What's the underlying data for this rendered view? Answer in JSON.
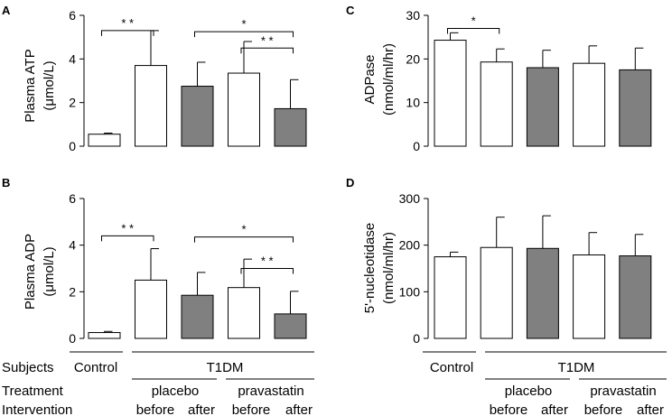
{
  "colors": {
    "placebo_after": "#808080",
    "pravastatin_after": "#808080",
    "open": "#ffffff",
    "ink": "#000000"
  },
  "chart_data": [
    {
      "panel": "A",
      "type": "bar",
      "ylabel": "Plasma ATP",
      "yunit": "(μmol/L)",
      "ylim": [
        0,
        6
      ],
      "yticks": [
        0,
        2,
        4,
        6
      ],
      "categories": [
        "Control",
        "T1DM placebo before",
        "T1DM placebo after",
        "T1DM pravastatin before",
        "T1DM pravastatin after"
      ],
      "values": [
        0.55,
        3.7,
        2.75,
        3.35,
        1.72
      ],
      "errors": [
        0.05,
        1.6,
        1.1,
        1.45,
        1.33
      ],
      "fills": [
        "open",
        "open",
        "filled",
        "open",
        "filled"
      ],
      "significance": [
        {
          "from": 0,
          "to": 1,
          "label": "* *",
          "y": 5.3
        },
        {
          "from": 2,
          "to": 4,
          "label": "*",
          "y": 5.25
        },
        {
          "from": 3,
          "to": 4,
          "label": "* *",
          "y": 4.5
        }
      ]
    },
    {
      "panel": "B",
      "type": "bar",
      "ylabel": "Plasma ADP",
      "yunit": "(μmol/L)",
      "ylim": [
        0,
        6
      ],
      "yticks": [
        0,
        2,
        4,
        6
      ],
      "categories": [
        "Control",
        "T1DM placebo before",
        "T1DM placebo after",
        "T1DM pravastatin before",
        "T1DM pravastatin after"
      ],
      "values": [
        0.25,
        2.5,
        1.85,
        2.18,
        1.05
      ],
      "errors": [
        0.05,
        1.35,
        0.98,
        1.22,
        0.97
      ],
      "fills": [
        "open",
        "open",
        "filled",
        "open",
        "filled"
      ],
      "significance": [
        {
          "from": 0,
          "to": 1,
          "label": "* *",
          "y": 4.4
        },
        {
          "from": 2,
          "to": 4,
          "label": "*",
          "y": 4.35
        },
        {
          "from": 3,
          "to": 4,
          "label": "* *",
          "y": 3.0
        }
      ]
    },
    {
      "panel": "C",
      "type": "bar",
      "ylabel": "ADPase",
      "yunit": "(nmol/ml/hr)",
      "ylim": [
        0,
        30
      ],
      "yticks": [
        0,
        10,
        20,
        30
      ],
      "categories": [
        "Control",
        "T1DM placebo before",
        "T1DM placebo after",
        "T1DM pravastatin before",
        "T1DM pravastatin after"
      ],
      "values": [
        24.3,
        19.3,
        18.0,
        19.0,
        17.5
      ],
      "errors": [
        1.7,
        3.0,
        4.0,
        4.0,
        5.0
      ],
      "fills": [
        "open",
        "open",
        "filled",
        "open",
        "filled"
      ],
      "significance": [
        {
          "from": 0,
          "to": 1,
          "label": "*",
          "y": 27.0
        }
      ]
    },
    {
      "panel": "D",
      "type": "bar",
      "ylabel": "5'-nucleotidase",
      "yunit": "(nmol/ml/hr)",
      "ylim": [
        0,
        300
      ],
      "yticks": [
        0,
        100,
        200,
        300
      ],
      "categories": [
        "Control",
        "T1DM placebo before",
        "T1DM placebo after",
        "T1DM pravastatin before",
        "T1DM pravastatin after"
      ],
      "values": [
        175,
        195,
        193,
        179,
        177
      ],
      "errors": [
        10,
        65,
        70,
        48,
        46
      ],
      "fills": [
        "open",
        "open",
        "filled",
        "open",
        "filled"
      ],
      "significance": []
    }
  ],
  "legend_rows": {
    "subjects": {
      "label": "Subjects",
      "control": "Control",
      "group": "T1DM"
    },
    "treatment": {
      "label": "Treatment",
      "placebo": "placebo",
      "pravastatin": "pravastatin"
    },
    "intervention": {
      "label": "Intervention",
      "before": "before",
      "after": "after"
    }
  }
}
